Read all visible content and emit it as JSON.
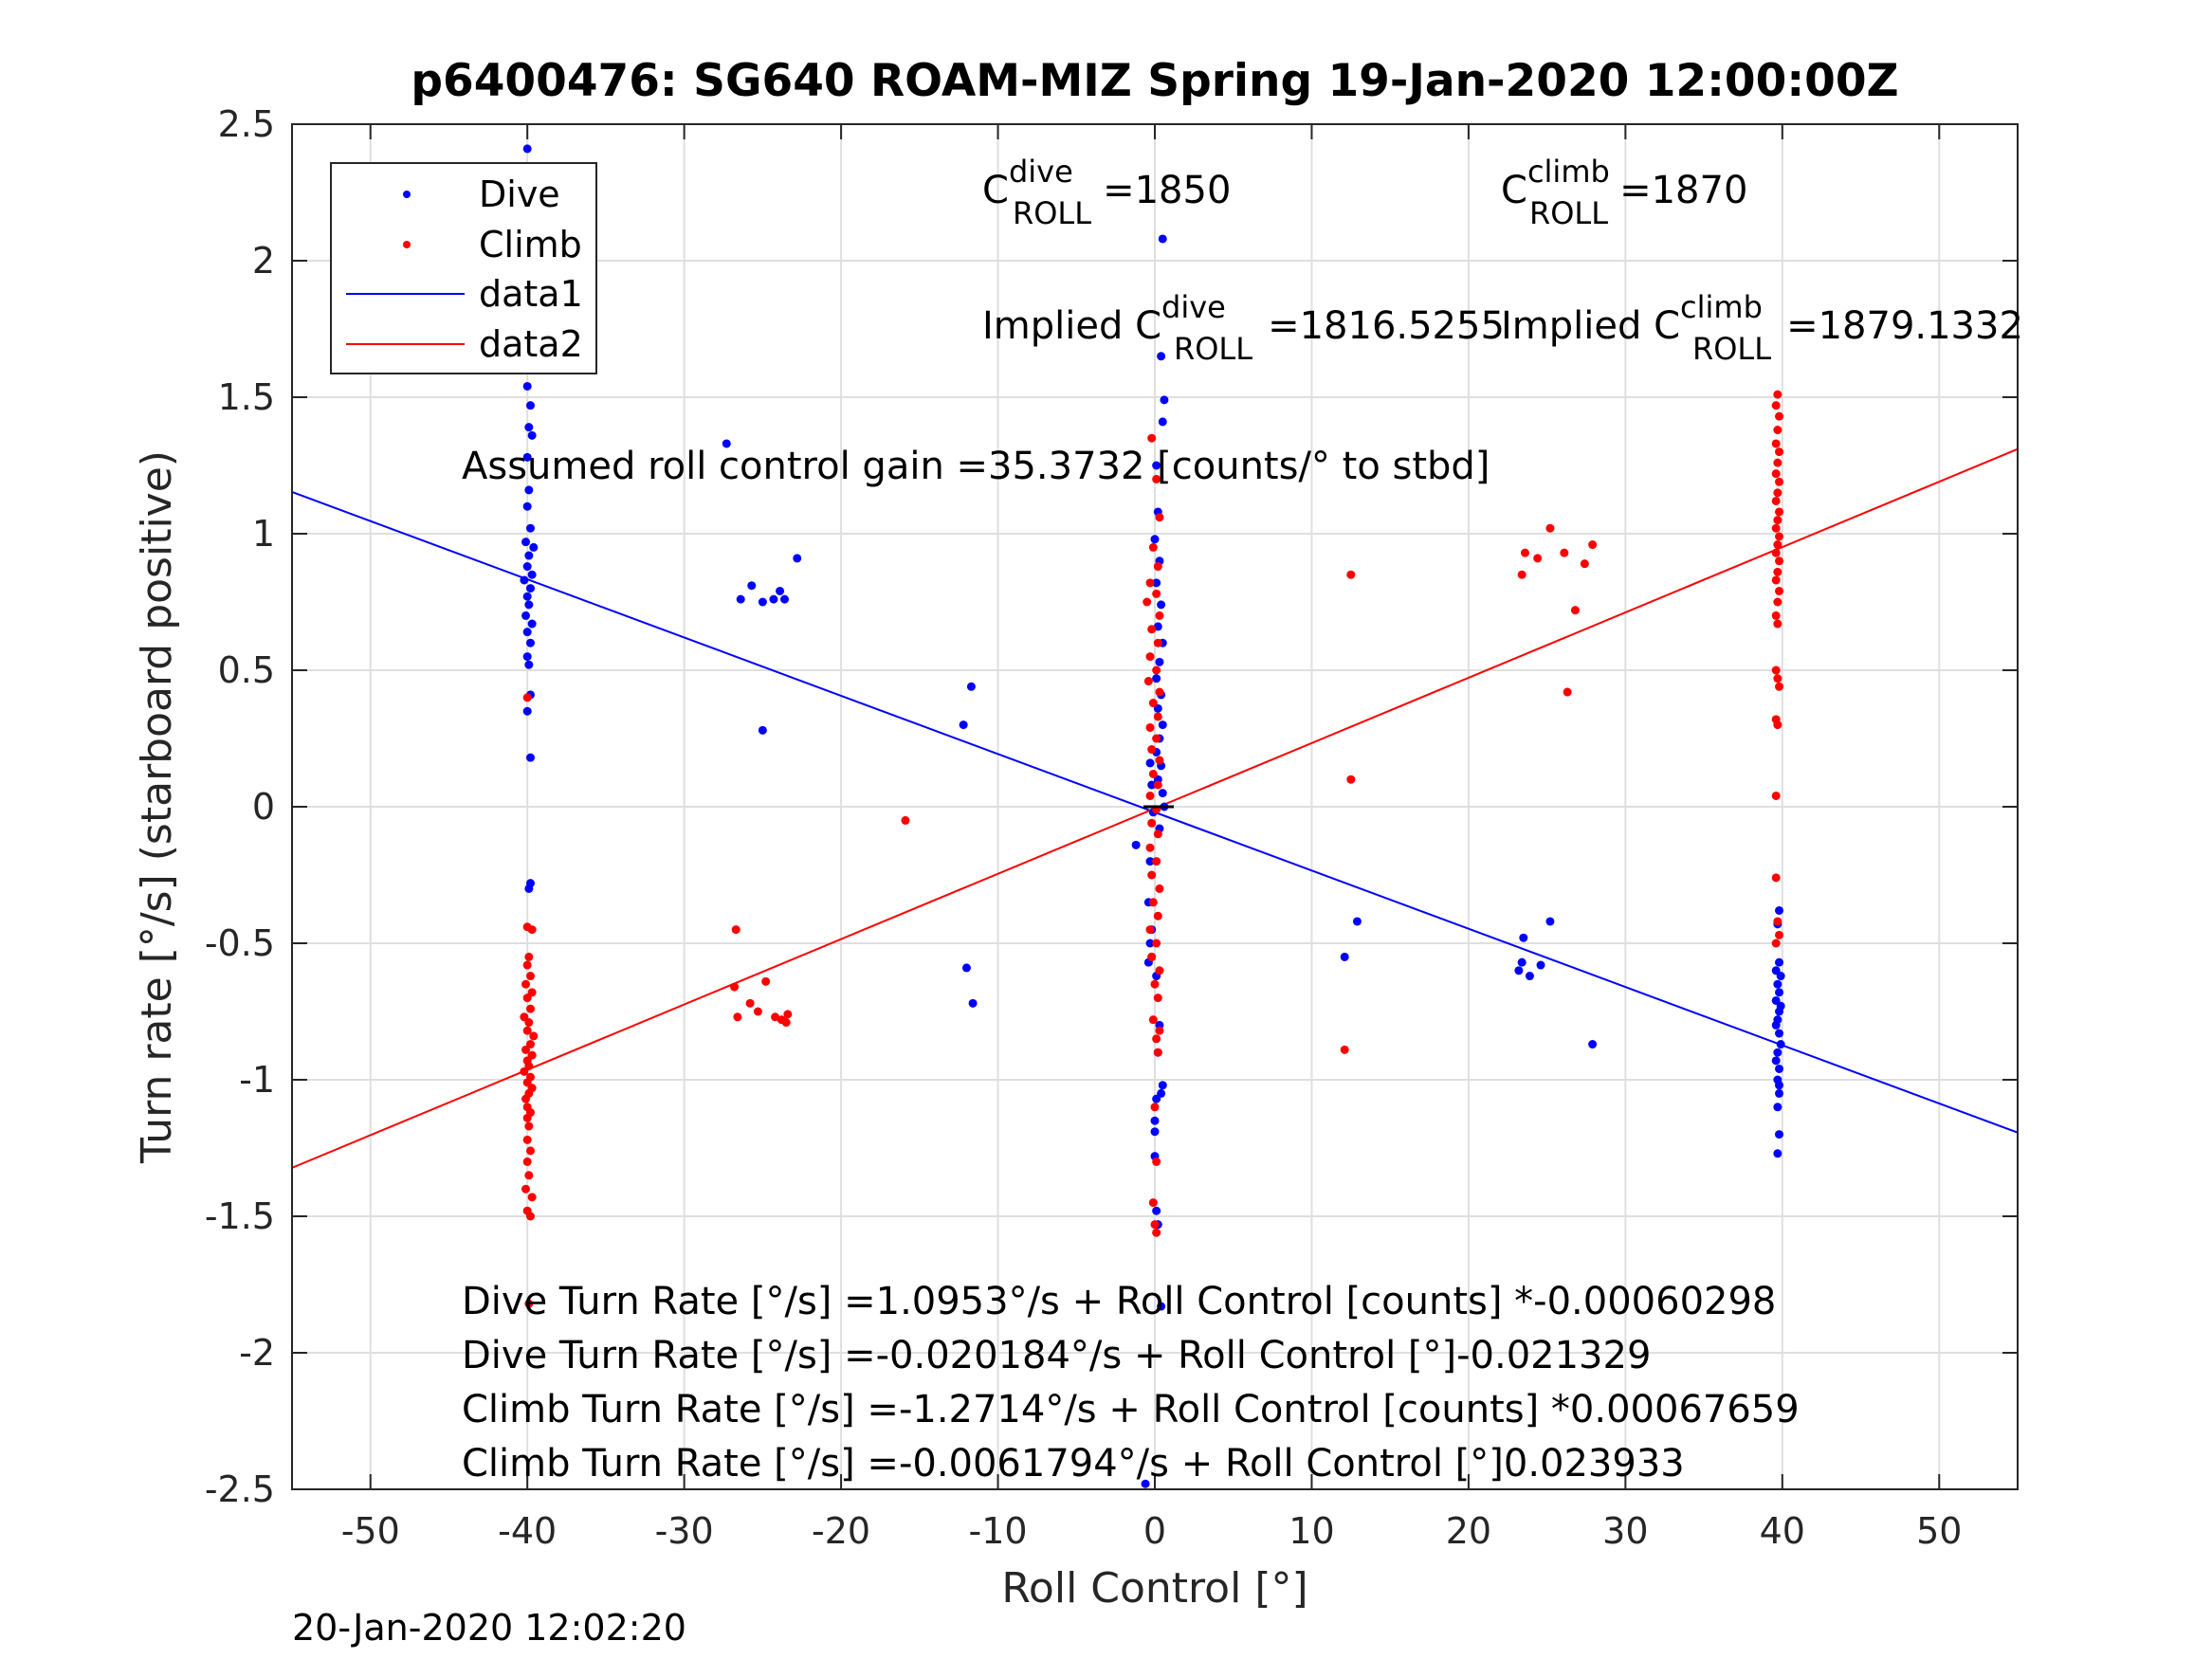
{
  "chart_data": {
    "type": "scatter",
    "title": "p6400476: SG640 ROAM-MIZ Spring 19-Jan-2020 12:00:00Z",
    "xlabel": "Roll Control [°]",
    "ylabel": "Turn rate [°/s] (starboard positive)",
    "xlim": [
      -55,
      55
    ],
    "ylim": [
      -2.5,
      2.5
    ],
    "xticks": [
      -50,
      -40,
      -30,
      -20,
      -10,
      0,
      10,
      20,
      30,
      40,
      50
    ],
    "yticks": [
      2.5,
      2,
      1.5,
      1,
      0.5,
      0,
      -0.5,
      -1,
      -1.5,
      -2,
      -2.5
    ],
    "xtick_labels": [
      "-50",
      "-40",
      "-30",
      "-20",
      "-10",
      "0",
      "10",
      "20",
      "30",
      "40",
      "50"
    ],
    "ytick_labels": [
      "2.5",
      "2",
      "1.5",
      "1",
      "0.5",
      "0",
      "-0.5",
      "-1",
      "-1.5",
      "-2",
      "-2.5"
    ],
    "grid": true,
    "legend_position": "top-left",
    "series": [
      {
        "name": "Dive",
        "kind": "points",
        "color": "#0000ff",
        "points": [
          [
            -40,
            2.41
          ],
          [
            -40,
            1.54
          ],
          [
            -39.8,
            1.47
          ],
          [
            -39.9,
            1.39
          ],
          [
            -39.7,
            1.36
          ],
          [
            -40,
            1.28
          ],
          [
            -39.9,
            1.16
          ],
          [
            -40,
            1.1
          ],
          [
            -39.8,
            1.02
          ],
          [
            -40.1,
            0.97
          ],
          [
            -39.6,
            0.95
          ],
          [
            -39.9,
            0.92
          ],
          [
            -40,
            0.88
          ],
          [
            -39.7,
            0.85
          ],
          [
            -40.2,
            0.83
          ],
          [
            -39.8,
            0.8
          ],
          [
            -40,
            0.77
          ],
          [
            -39.9,
            0.74
          ],
          [
            -40.1,
            0.7
          ],
          [
            -39.7,
            0.67
          ],
          [
            -40,
            0.64
          ],
          [
            -39.8,
            0.6
          ],
          [
            -40,
            0.55
          ],
          [
            -39.9,
            0.52
          ],
          [
            -39.8,
            0.41
          ],
          [
            -40,
            0.35
          ],
          [
            -39.8,
            0.18
          ],
          [
            -39.8,
            -0.28
          ],
          [
            -39.9,
            -0.3
          ],
          [
            -27.3,
            1.33
          ],
          [
            -25.7,
            0.81
          ],
          [
            -26.4,
            0.76
          ],
          [
            -25,
            0.75
          ],
          [
            -24.3,
            0.76
          ],
          [
            -23.9,
            0.79
          ],
          [
            -23.6,
            0.76
          ],
          [
            -22.8,
            0.91
          ],
          [
            -25,
            0.28
          ],
          [
            -11.7,
            0.44
          ],
          [
            -12.2,
            0.3
          ],
          [
            -12,
            -0.59
          ],
          [
            -11.6,
            -0.72
          ],
          [
            0.5,
            2.08
          ],
          [
            0.4,
            1.65
          ],
          [
            0.6,
            1.49
          ],
          [
            0.5,
            1.41
          ],
          [
            0.1,
            1.25
          ],
          [
            0.2,
            1.08
          ],
          [
            0,
            0.98
          ],
          [
            0.3,
            0.9
          ],
          [
            0.1,
            0.82
          ],
          [
            0.4,
            0.74
          ],
          [
            0.2,
            0.66
          ],
          [
            0.5,
            0.6
          ],
          [
            0.3,
            0.53
          ],
          [
            0.1,
            0.47
          ],
          [
            0.4,
            0.41
          ],
          [
            0.2,
            0.36
          ],
          [
            0.5,
            0.3
          ],
          [
            0.3,
            0.25
          ],
          [
            0.1,
            0.2
          ],
          [
            0.4,
            0.15
          ],
          [
            0.2,
            0.1
          ],
          [
            -0.3,
            0.16
          ],
          [
            -0.2,
            0.08
          ],
          [
            0.5,
            0.05
          ],
          [
            0.6,
            0
          ],
          [
            -0.1,
            -0.02
          ],
          [
            0.3,
            -0.08
          ],
          [
            -1.2,
            -0.14
          ],
          [
            -0.3,
            -0.2
          ],
          [
            -0.4,
            -0.35
          ],
          [
            -0.2,
            -0.45
          ],
          [
            -0.3,
            -0.5
          ],
          [
            -0.2,
            -0.55
          ],
          [
            -0.4,
            -0.57
          ],
          [
            0.1,
            -0.62
          ],
          [
            0.3,
            -0.8
          ],
          [
            0.2,
            -0.9
          ],
          [
            0.5,
            -1.02
          ],
          [
            0.4,
            -1.05
          ],
          [
            0.1,
            -1.07
          ],
          [
            0,
            -1.15
          ],
          [
            0,
            -1.19
          ],
          [
            0,
            -1.28
          ],
          [
            0.1,
            -1.48
          ],
          [
            0.2,
            -1.53
          ],
          [
            0.4,
            -1.83
          ],
          [
            -0.6,
            -2.48
          ],
          [
            12.1,
            -0.55
          ],
          [
            12.9,
            -0.42
          ],
          [
            23.5,
            -0.48
          ],
          [
            23.4,
            -0.57
          ],
          [
            23.2,
            -0.6
          ],
          [
            23.9,
            -0.62
          ],
          [
            24.6,
            -0.58
          ],
          [
            25.2,
            -0.42
          ],
          [
            27.9,
            -0.87
          ],
          [
            39.8,
            -0.38
          ],
          [
            39.7,
            -0.43
          ],
          [
            39.8,
            -0.57
          ],
          [
            39.6,
            -0.6
          ],
          [
            39.9,
            -0.62
          ],
          [
            39.7,
            -0.65
          ],
          [
            39.8,
            -0.68
          ],
          [
            39.6,
            -0.71
          ],
          [
            39.9,
            -0.73
          ],
          [
            39.8,
            -0.75
          ],
          [
            39.7,
            -0.78
          ],
          [
            39.6,
            -0.8
          ],
          [
            39.8,
            -0.83
          ],
          [
            39.9,
            -0.87
          ],
          [
            39.7,
            -0.9
          ],
          [
            39.6,
            -0.93
          ],
          [
            39.8,
            -0.96
          ],
          [
            39.7,
            -1
          ],
          [
            39.8,
            -1.05
          ],
          [
            39.7,
            -1.1
          ],
          [
            39.8,
            -1.2
          ],
          [
            39.7,
            -1.27
          ],
          [
            39.8,
            -1.02
          ]
        ]
      },
      {
        "name": "Climb",
        "kind": "points",
        "color": "#ff0000",
        "points": [
          [
            -40,
            0.4
          ],
          [
            -40,
            -0.44
          ],
          [
            -39.7,
            -0.45
          ],
          [
            -39.9,
            -0.55
          ],
          [
            -40,
            -0.58
          ],
          [
            -39.8,
            -0.62
          ],
          [
            -40.1,
            -0.65
          ],
          [
            -39.7,
            -0.68
          ],
          [
            -40,
            -0.7
          ],
          [
            -39.8,
            -0.74
          ],
          [
            -40.2,
            -0.77
          ],
          [
            -39.9,
            -0.79
          ],
          [
            -40,
            -0.82
          ],
          [
            -39.6,
            -0.84
          ],
          [
            -39.8,
            -0.87
          ],
          [
            -40.1,
            -0.89
          ],
          [
            -39.7,
            -0.91
          ],
          [
            -40,
            -0.93
          ],
          [
            -39.9,
            -0.95
          ],
          [
            -40.2,
            -0.97
          ],
          [
            -39.8,
            -0.99
          ],
          [
            -40,
            -1.01
          ],
          [
            -39.7,
            -1.03
          ],
          [
            -39.9,
            -1.05
          ],
          [
            -40.1,
            -1.07
          ],
          [
            -40,
            -1.1
          ],
          [
            -39.8,
            -1.12
          ],
          [
            -40,
            -1.14
          ],
          [
            -39.9,
            -1.17
          ],
          [
            -40,
            -1.22
          ],
          [
            -39.8,
            -1.26
          ],
          [
            -40,
            -1.3
          ],
          [
            -39.9,
            -1.35
          ],
          [
            -40.1,
            -1.4
          ],
          [
            -39.7,
            -1.43
          ],
          [
            -40,
            -1.48
          ],
          [
            -39.8,
            -1.5
          ],
          [
            -39.9,
            -1.82
          ],
          [
            -26.7,
            -0.45
          ],
          [
            -26.8,
            -0.66
          ],
          [
            -26.6,
            -0.77
          ],
          [
            -25.8,
            -0.72
          ],
          [
            -25.3,
            -0.75
          ],
          [
            -24.8,
            -0.64
          ],
          [
            -24.2,
            -0.77
          ],
          [
            -23.8,
            -0.78
          ],
          [
            -23.5,
            -0.79
          ],
          [
            -23.4,
            -0.76
          ],
          [
            -15.9,
            -0.05
          ],
          [
            -0.2,
            1.35
          ],
          [
            0.1,
            1.2
          ],
          [
            0.3,
            1.06
          ],
          [
            -0.1,
            0.95
          ],
          [
            0.2,
            0.88
          ],
          [
            -0.3,
            0.82
          ],
          [
            0.1,
            0.78
          ],
          [
            -0.5,
            0.75
          ],
          [
            0.3,
            0.7
          ],
          [
            -0.2,
            0.65
          ],
          [
            0.2,
            0.6
          ],
          [
            -0.3,
            0.55
          ],
          [
            0.1,
            0.5
          ],
          [
            -0.4,
            0.46
          ],
          [
            0.3,
            0.42
          ],
          [
            -0.1,
            0.38
          ],
          [
            0.2,
            0.33
          ],
          [
            -0.3,
            0.29
          ],
          [
            0.1,
            0.25
          ],
          [
            -0.2,
            0.21
          ],
          [
            0.3,
            0.17
          ],
          [
            -0.1,
            0.12
          ],
          [
            0.2,
            0.08
          ],
          [
            -0.3,
            0.04
          ],
          [
            0.1,
            -0.01
          ],
          [
            -0.2,
            -0.06
          ],
          [
            0.2,
            -0.1
          ],
          [
            -0.3,
            -0.15
          ],
          [
            0.1,
            -0.2
          ],
          [
            -0.2,
            -0.25
          ],
          [
            0.3,
            -0.3
          ],
          [
            -0.1,
            -0.35
          ],
          [
            0.2,
            -0.4
          ],
          [
            -0.3,
            -0.45
          ],
          [
            0.1,
            -0.5
          ],
          [
            -0.2,
            -0.55
          ],
          [
            0.3,
            -0.6
          ],
          [
            0,
            -0.65
          ],
          [
            0.2,
            -0.7
          ],
          [
            -0.1,
            -0.78
          ],
          [
            0.3,
            -0.82
          ],
          [
            0.1,
            -0.85
          ],
          [
            0.2,
            -0.9
          ],
          [
            0,
            -1.1
          ],
          [
            0.1,
            -1.3
          ],
          [
            -0.1,
            -1.45
          ],
          [
            0,
            -1.53
          ],
          [
            0.1,
            -1.56
          ],
          [
            12.5,
            0.85
          ],
          [
            12.5,
            0.1
          ],
          [
            12.1,
            -0.89
          ],
          [
            23.6,
            0.93
          ],
          [
            23.4,
            0.85
          ],
          [
            24.4,
            0.91
          ],
          [
            25.2,
            1.02
          ],
          [
            26.1,
            0.93
          ],
          [
            27.4,
            0.89
          ],
          [
            27.9,
            0.96
          ],
          [
            26.8,
            0.72
          ],
          [
            26.3,
            0.42
          ],
          [
            39.7,
            1.51
          ],
          [
            39.6,
            1.47
          ],
          [
            39.8,
            1.43
          ],
          [
            39.7,
            1.38
          ],
          [
            39.6,
            1.33
          ],
          [
            39.8,
            1.3
          ],
          [
            39.7,
            1.26
          ],
          [
            39.6,
            1.22
          ],
          [
            39.8,
            1.19
          ],
          [
            39.7,
            1.15
          ],
          [
            39.6,
            1.12
          ],
          [
            39.8,
            1.08
          ],
          [
            39.7,
            1.05
          ],
          [
            39.6,
            1.02
          ],
          [
            39.8,
            0.99
          ],
          [
            39.7,
            0.96
          ],
          [
            39.6,
            0.93
          ],
          [
            39.8,
            0.9
          ],
          [
            39.7,
            0.86
          ],
          [
            39.6,
            0.83
          ],
          [
            39.8,
            0.79
          ],
          [
            39.7,
            0.75
          ],
          [
            39.6,
            0.7
          ],
          [
            39.7,
            0.67
          ],
          [
            39.6,
            0.5
          ],
          [
            39.7,
            0.47
          ],
          [
            39.8,
            0.44
          ],
          [
            39.6,
            0.32
          ],
          [
            39.7,
            0.3
          ],
          [
            39.6,
            0.04
          ],
          [
            39.6,
            -0.26
          ],
          [
            39.7,
            -0.42
          ],
          [
            39.8,
            -0.47
          ],
          [
            39.6,
            -0.5
          ]
        ]
      },
      {
        "name": "data1",
        "kind": "line",
        "color": "#0000ff",
        "x": [
          -55,
          55
        ],
        "y": [
          1.1531,
          -1.1935
        ]
      },
      {
        "name": "data2",
        "kind": "line",
        "color": "#ff0000",
        "x": [
          -55,
          55
        ],
        "y": [
          -1.3225,
          1.3101
        ]
      }
    ],
    "annotations": {
      "c_dive": {
        "main": "C",
        "sup": "dive",
        "sub": "ROLL",
        "value": "=1850"
      },
      "c_climb": {
        "main": "C",
        "sup": "climb",
        "sub": "ROLL",
        "value": "=1870"
      },
      "implied_dive": {
        "main": "Implied C",
        "sup": "dive",
        "sub": "ROLL",
        "value": "=1816.5255"
      },
      "implied_climb": {
        "main": "Implied C",
        "sup": "climb",
        "sub": "ROLL",
        "value": "=1879.1332"
      },
      "gain": "Assumed roll control gain =35.3732 [counts/° to stbd]",
      "equations": [
        "Dive Turn Rate [°/s] =1.0953°/s + Roll Control [counts] *-0.00060298",
        "Dive Turn Rate [°/s] =-0.020184°/s + Roll Control [°]-0.021329",
        "Climb Turn Rate [°/s] =-1.2714°/s + Roll Control [counts] *0.00067659",
        "Climb Turn Rate [°/s] =-0.0061794°/s + Roll Control [°]0.023933"
      ]
    },
    "timestamp": "20-Jan-2020 12:02:20"
  }
}
